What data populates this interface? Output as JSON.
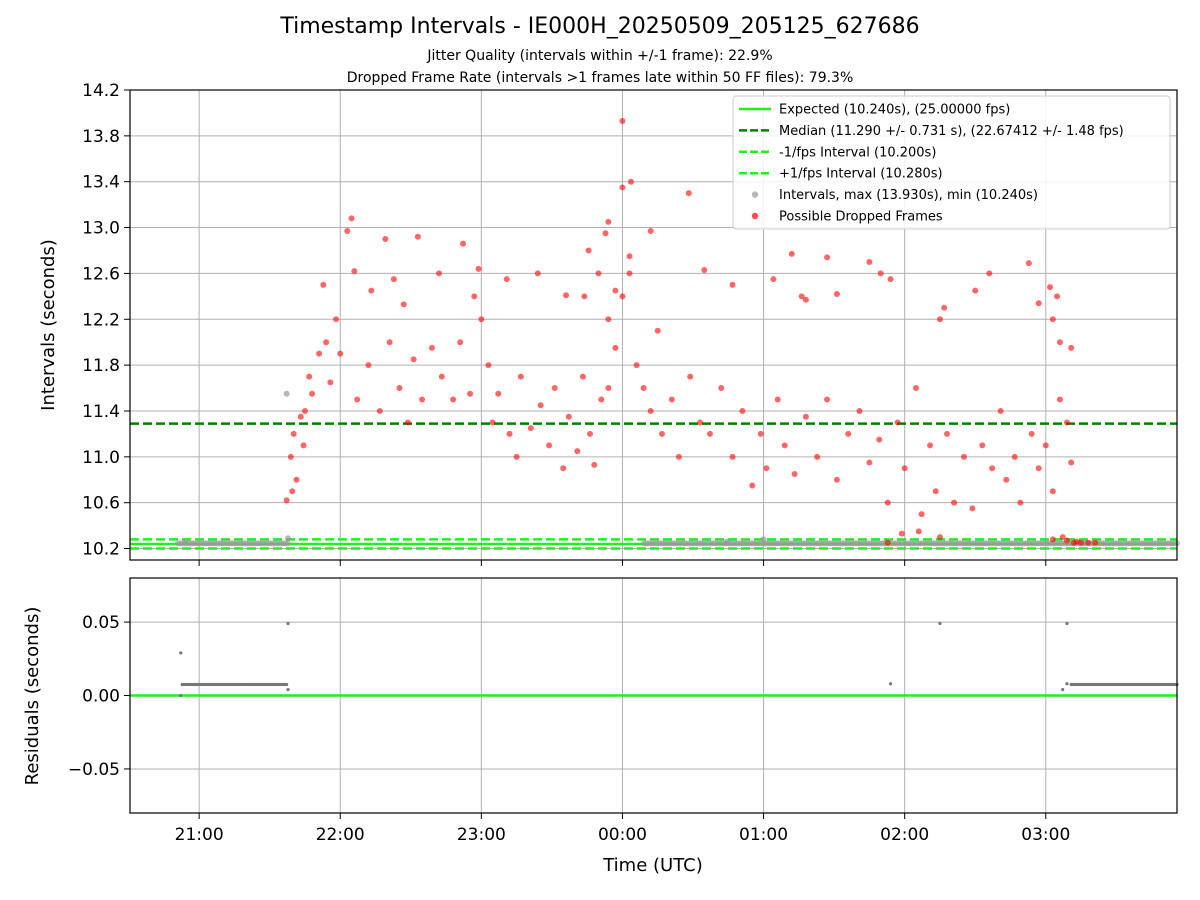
{
  "title": "Timestamp Intervals - IE000H_20250509_205125_627686",
  "subtitle_1": "Jitter Quality (intervals within +/-1 frame): 22.9%",
  "subtitle_2": "Dropped Frame Rate (intervals >1 frames late within 50 FF files): 79.3%",
  "colors": {
    "expected": "#22ee22",
    "median": "#008000",
    "interval_band": "#22ee22",
    "intervals": "#999999",
    "dropped": "#ff0000",
    "residuals": "#777777",
    "grid": "#b0b0b0"
  },
  "chart_data": [
    {
      "type": "scatter",
      "panel": "top",
      "xlabel": "",
      "ylabel": "Intervals (seconds)",
      "x_unit": "hours since 21:00 UTC",
      "xlim": [
        -0.49,
        6.93
      ],
      "ylim": [
        10.1,
        14.2
      ],
      "yticks": [
        "10.2",
        "10.6",
        "11.0",
        "11.4",
        "11.8",
        "12.2",
        "12.6",
        "13.0",
        "13.4",
        "13.8",
        "14.2"
      ],
      "grid": true,
      "legend_position": "top-right",
      "legend": [
        {
          "label": "Expected (10.240s), (25.00000 fps)",
          "style": "solid-line",
          "color": "#22ee22"
        },
        {
          "label": "Median (11.290 +/- 0.731 s), (22.67412 +/- 1.48 fps)",
          "style": "dashed-line",
          "color": "#008000"
        },
        {
          "label": "-1/fps Interval (10.200s)",
          "style": "dashed-line",
          "color": "#22ee22"
        },
        {
          "label": "+1/fps Interval (10.280s)",
          "style": "dashed-line",
          "color": "#22ee22"
        },
        {
          "label": "Intervals, max (13.930s), min (10.240s)",
          "style": "dot",
          "color": "#999999"
        },
        {
          "label": "Possible Dropped Frames",
          "style": "dot",
          "color": "#ff0000"
        }
      ],
      "reference_lines": {
        "expected": 10.24,
        "median": 11.29,
        "minus_1fps": 10.2,
        "plus_1fps": 10.28
      },
      "series": [
        {
          "name": "Intervals, max (13.930s), min (10.240s)",
          "points": [
            [
              -0.1,
              10.26
            ],
            [
              0.62,
              11.55
            ],
            [
              0.63,
              10.29
            ],
            [
              3.74,
              10.26
            ],
            [
              4.0,
              10.28
            ]
          ],
          "dense_segments": [
            {
              "x_start": -0.15,
              "x_end": 0.63,
              "y": 10.245
            },
            {
              "x_start": 3.15,
              "x_end": 6.93,
              "y": 10.245
            }
          ]
        },
        {
          "name": "Possible Dropped Frames",
          "points": [
            [
              3.0,
              13.93
            ],
            [
              3.06,
              13.4
            ],
            [
              3.0,
              13.35
            ],
            [
              2.9,
              13.05
            ],
            [
              2.88,
              12.95
            ],
            [
              2.83,
              12.6
            ],
            [
              3.2,
              12.97
            ],
            [
              3.05,
              12.75
            ],
            [
              2.73,
              12.4
            ],
            [
              2.9,
              12.2
            ],
            [
              3.25,
              12.1
            ],
            [
              2.95,
              12.45
            ],
            [
              1.08,
              13.08
            ],
            [
              1.05,
              12.97
            ],
            [
              0.88,
              12.5
            ],
            [
              1.32,
              12.9
            ],
            [
              1.55,
              12.92
            ],
            [
              1.87,
              12.86
            ],
            [
              1.98,
              12.64
            ],
            [
              2.18,
              12.55
            ],
            [
              2.4,
              12.6
            ],
            [
              2.6,
              12.41
            ],
            [
              2.76,
              12.8
            ],
            [
              1.1,
              12.62
            ],
            [
              1.22,
              12.45
            ],
            [
              1.38,
              12.55
            ],
            [
              1.45,
              12.33
            ],
            [
              1.7,
              12.6
            ],
            [
              1.95,
              12.4
            ],
            [
              2.0,
              12.2
            ],
            [
              4.2,
              12.77
            ],
            [
              4.45,
              12.74
            ],
            [
              4.75,
              12.7
            ],
            [
              3.47,
              13.3
            ],
            [
              3.58,
              12.63
            ],
            [
              3.78,
              12.5
            ],
            [
              4.07,
              12.55
            ],
            [
              4.27,
              12.4
            ],
            [
              4.52,
              12.42
            ],
            [
              4.3,
              12.37
            ],
            [
              4.83,
              12.6
            ],
            [
              4.9,
              12.55
            ],
            [
              5.6,
              12.6
            ],
            [
              5.5,
              12.45
            ],
            [
              5.25,
              12.2
            ],
            [
              5.28,
              12.3
            ],
            [
              5.95,
              12.34
            ],
            [
              6.05,
              12.2
            ],
            [
              5.88,
              12.69
            ],
            [
              6.03,
              12.48
            ],
            [
              6.08,
              12.4
            ],
            [
              6.1,
              12.0
            ],
            [
              6.18,
              11.95
            ],
            [
              0.62,
              10.62
            ],
            [
              0.66,
              10.7
            ],
            [
              0.69,
              10.8
            ],
            [
              0.65,
              11.0
            ],
            [
              0.67,
              11.2
            ],
            [
              0.72,
              11.35
            ],
            [
              0.75,
              11.4
            ],
            [
              0.78,
              11.7
            ],
            [
              0.74,
              11.1
            ],
            [
              0.8,
              11.55
            ],
            [
              0.85,
              11.9
            ],
            [
              0.9,
              12.0
            ],
            [
              0.93,
              11.65
            ],
            [
              0.97,
              12.2
            ],
            [
              1.0,
              11.9
            ],
            [
              1.12,
              11.5
            ],
            [
              1.2,
              11.8
            ],
            [
              1.28,
              11.4
            ],
            [
              1.35,
              12.0
            ],
            [
              1.42,
              11.6
            ],
            [
              1.48,
              11.3
            ],
            [
              1.52,
              11.85
            ],
            [
              1.58,
              11.5
            ],
            [
              1.65,
              11.95
            ],
            [
              1.72,
              11.7
            ],
            [
              1.8,
              11.5
            ],
            [
              1.85,
              12.0
            ],
            [
              1.92,
              11.55
            ],
            [
              2.05,
              11.8
            ],
            [
              2.08,
              11.3
            ],
            [
              2.12,
              11.55
            ],
            [
              2.2,
              11.2
            ],
            [
              2.25,
              11.0
            ],
            [
              2.28,
              11.7
            ],
            [
              2.35,
              11.25
            ],
            [
              2.42,
              11.45
            ],
            [
              2.48,
              11.1
            ],
            [
              2.52,
              11.6
            ],
            [
              2.58,
              10.9
            ],
            [
              2.62,
              11.35
            ],
            [
              2.68,
              11.05
            ],
            [
              2.72,
              11.7
            ],
            [
              2.77,
              11.2
            ],
            [
              2.8,
              10.93
            ],
            [
              2.85,
              11.5
            ],
            [
              2.9,
              11.6
            ],
            [
              2.95,
              11.95
            ],
            [
              3.0,
              12.4
            ],
            [
              3.05,
              12.6
            ],
            [
              3.1,
              11.8
            ],
            [
              3.15,
              11.6
            ],
            [
              3.2,
              11.4
            ],
            [
              3.28,
              11.2
            ],
            [
              3.35,
              11.5
            ],
            [
              3.4,
              11.0
            ],
            [
              3.48,
              11.7
            ],
            [
              3.55,
              11.3
            ],
            [
              3.62,
              11.2
            ],
            [
              3.7,
              11.6
            ],
            [
              3.78,
              11.0
            ],
            [
              3.85,
              11.4
            ],
            [
              3.92,
              10.75
            ],
            [
              3.98,
              11.2
            ],
            [
              4.02,
              10.9
            ],
            [
              4.1,
              11.5
            ],
            [
              4.15,
              11.1
            ],
            [
              4.22,
              10.85
            ],
            [
              4.3,
              11.35
            ],
            [
              4.38,
              11.0
            ],
            [
              4.45,
              11.5
            ],
            [
              4.52,
              10.8
            ],
            [
              4.6,
              11.2
            ],
            [
              4.68,
              11.4
            ],
            [
              4.75,
              10.95
            ],
            [
              4.82,
              11.15
            ],
            [
              4.88,
              10.6
            ],
            [
              4.95,
              11.3
            ],
            [
              5.0,
              10.9
            ],
            [
              5.08,
              11.6
            ],
            [
              5.12,
              10.5
            ],
            [
              5.18,
              11.1
            ],
            [
              5.22,
              10.7
            ],
            [
              5.3,
              11.2
            ],
            [
              5.35,
              10.6
            ],
            [
              5.42,
              11.0
            ],
            [
              5.48,
              10.55
            ],
            [
              5.55,
              11.1
            ],
            [
              5.62,
              10.9
            ],
            [
              5.68,
              11.4
            ],
            [
              5.72,
              10.8
            ],
            [
              5.78,
              11.0
            ],
            [
              5.82,
              10.6
            ],
            [
              5.9,
              11.2
            ],
            [
              5.95,
              10.9
            ],
            [
              6.0,
              11.1
            ],
            [
              6.05,
              10.7
            ],
            [
              6.1,
              11.5
            ],
            [
              6.15,
              11.3
            ],
            [
              6.18,
              10.95
            ],
            [
              4.98,
              10.33
            ],
            [
              5.1,
              10.35
            ],
            [
              4.88,
              10.25
            ],
            [
              5.25,
              10.3
            ],
            [
              6.12,
              10.3
            ],
            [
              6.05,
              10.28
            ],
            [
              6.15,
              10.27
            ],
            [
              6.2,
              10.25
            ],
            [
              6.25,
              10.25
            ],
            [
              6.3,
              10.25
            ],
            [
              6.35,
              10.25
            ],
            [
              6.22,
              10.26
            ]
          ]
        }
      ]
    },
    {
      "type": "scatter",
      "panel": "bottom",
      "xlabel": "Time (UTC)",
      "ylabel": "Residuals (seconds)",
      "x_unit": "hours since 21:00 UTC",
      "xlim": [
        -0.49,
        6.93
      ],
      "ylim": [
        -0.08,
        0.08
      ],
      "yticks": [
        "−0.05",
        "0.00",
        "0.05"
      ],
      "ytick_values": [
        -0.05,
        0.0,
        0.05
      ],
      "xticks": [
        "21:00",
        "22:00",
        "23:00",
        "00:00",
        "01:00",
        "02:00",
        "03:00"
      ],
      "xtick_values": [
        0,
        1,
        2,
        3,
        4,
        5,
        6
      ],
      "grid": true,
      "zero_line": 0.0,
      "series": [
        {
          "name": "",
          "points": [
            [
              -0.13,
              0.029
            ],
            [
              0.63,
              0.049
            ],
            [
              0.63,
              0.004
            ],
            [
              -0.13,
              0.0
            ],
            [
              4.9,
              0.008
            ],
            [
              5.25,
              0.049
            ],
            [
              6.15,
              0.049
            ],
            [
              6.12,
              0.004
            ],
            [
              6.15,
              0.008
            ]
          ],
          "dense_segments": [
            {
              "x_start": -0.12,
              "x_end": 0.62,
              "y": 0.0075
            },
            {
              "x_start": 6.18,
              "x_end": 6.93,
              "y": 0.0075
            }
          ]
        }
      ]
    }
  ]
}
